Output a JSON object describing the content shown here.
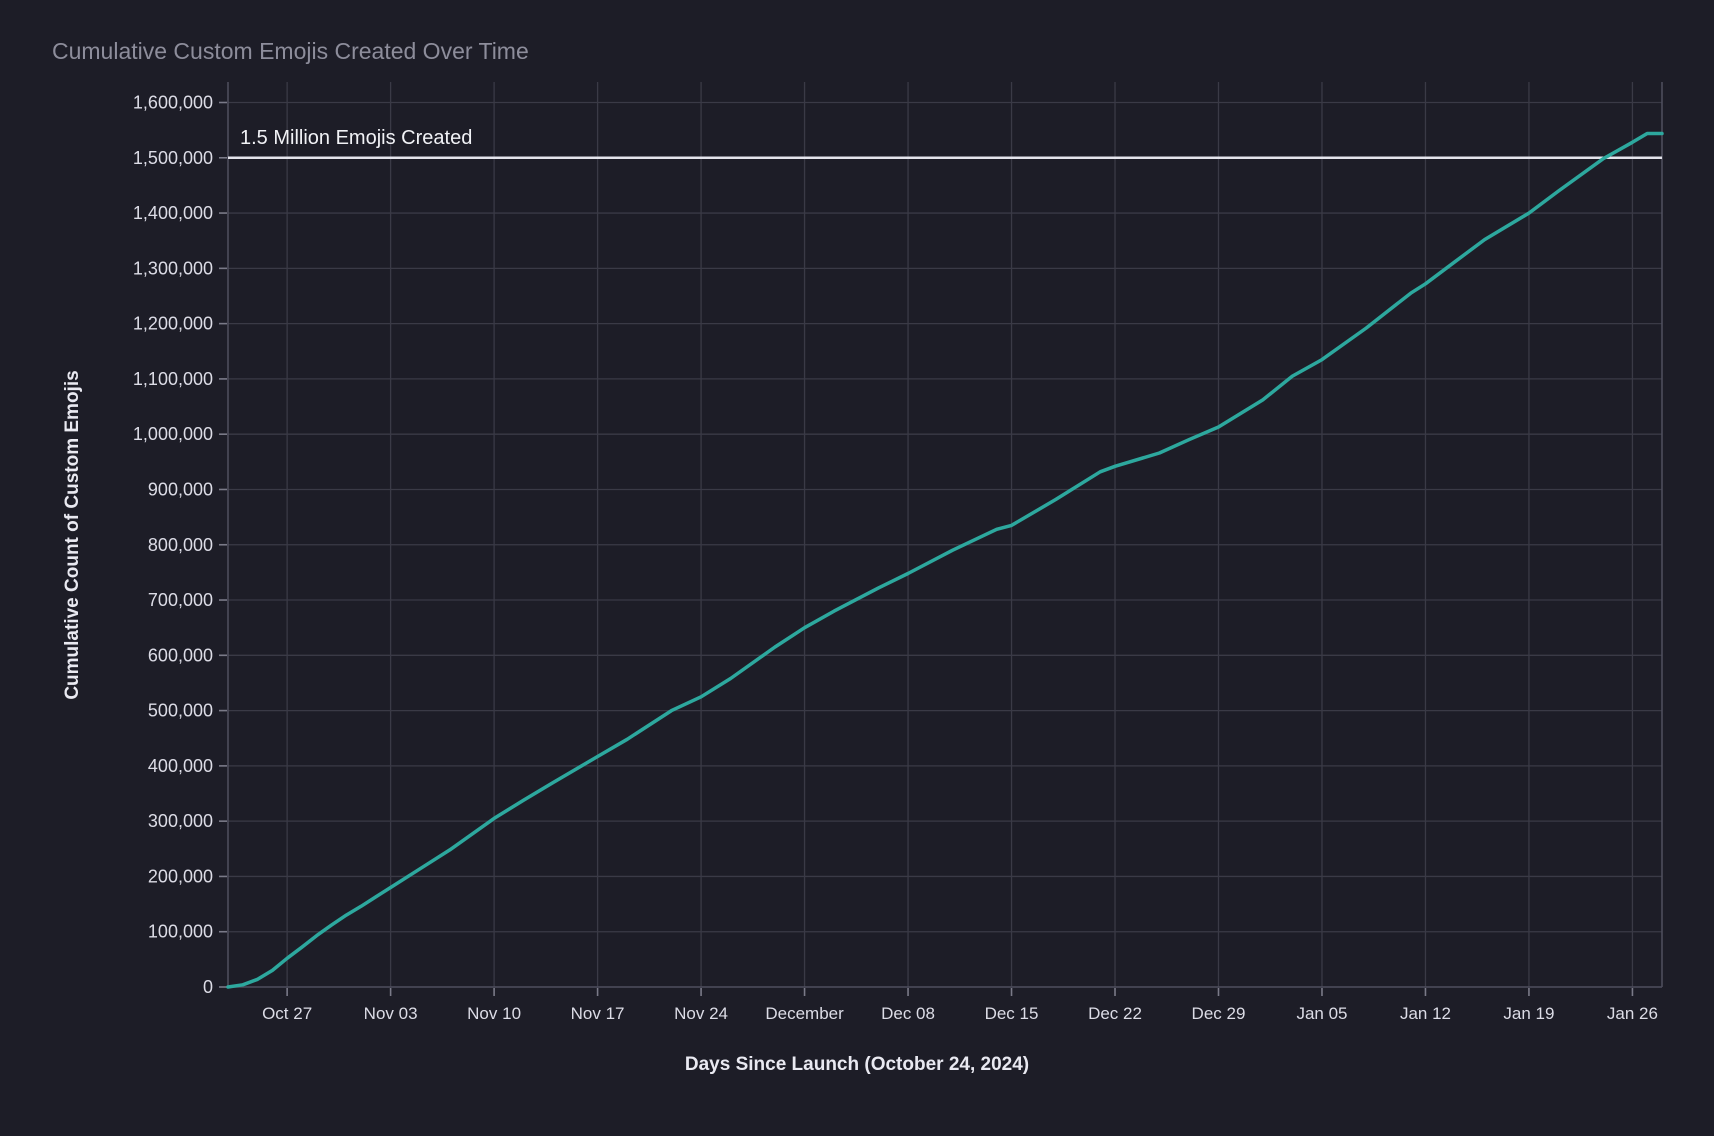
{
  "figure": {
    "title": "Cumulative Custom Emojis Created Over Time"
  },
  "theme": {
    "background": "#1d1d27",
    "grid_color": "#3a3a46",
    "spine_color": "#4d4d5c",
    "tick_mark_color": "#7a7a88",
    "line_color": "#2da89e",
    "reference_line_color": "#e4e4ec",
    "title_color": "#8d8d9b",
    "tick_label_color": "#dcdce6",
    "axis_label_color": "#e9e9f1",
    "annotation_color": "#f1f2f6"
  },
  "chart_data": {
    "type": "line",
    "title": "Cumulative Custom Emojis Created Over Time",
    "xlabel": "Days Since Launch (October 24, 2024)",
    "ylabel": "Cumulative Count of Custom Emojis",
    "legend": null,
    "grid": true,
    "x_domain_days_since_launch": [
      -1,
      96
    ],
    "ylim": [
      0,
      1600000
    ],
    "x_ticks": [
      {
        "label": "Oct 27",
        "day": 3
      },
      {
        "label": "Nov 03",
        "day": 10
      },
      {
        "label": "Nov 10",
        "day": 17
      },
      {
        "label": "Nov 17",
        "day": 24
      },
      {
        "label": "Nov 24",
        "day": 31
      },
      {
        "label": "December",
        "day": 38
      },
      {
        "label": "Dec 08",
        "day": 45
      },
      {
        "label": "Dec 15",
        "day": 52
      },
      {
        "label": "Dec 22",
        "day": 59
      },
      {
        "label": "Dec 29",
        "day": 66
      },
      {
        "label": "Jan 05",
        "day": 73
      },
      {
        "label": "Jan 12",
        "day": 80
      },
      {
        "label": "Jan 19",
        "day": 87
      },
      {
        "label": "Jan 26",
        "day": 94
      }
    ],
    "y_ticks": [
      {
        "value": 0,
        "label": "0"
      },
      {
        "value": 100000,
        "label": "100,000"
      },
      {
        "value": 200000,
        "label": "200,000"
      },
      {
        "value": 300000,
        "label": "300,000"
      },
      {
        "value": 400000,
        "label": "400,000"
      },
      {
        "value": 500000,
        "label": "500,000"
      },
      {
        "value": 600000,
        "label": "600,000"
      },
      {
        "value": 700000,
        "label": "700,000"
      },
      {
        "value": 800000,
        "label": "800,000"
      },
      {
        "value": 900000,
        "label": "900,000"
      },
      {
        "value": 1000000,
        "label": "1,000,000"
      },
      {
        "value": 1100000,
        "label": "1,100,000"
      },
      {
        "value": 1200000,
        "label": "1,200,000"
      },
      {
        "value": 1300000,
        "label": "1,300,000"
      },
      {
        "value": 1400000,
        "label": "1,400,000"
      },
      {
        "value": 1500000,
        "label": "1,500,000"
      },
      {
        "value": 1600000,
        "label": "1,600,000"
      }
    ],
    "reference_line": {
      "value": 1500000,
      "label": "1.5 Million Emojis Created"
    },
    "series": [
      {
        "name": "Cumulative Custom Emojis",
        "color": "#2da89e",
        "points": [
          {
            "date": "Oct 23",
            "day": -1,
            "value": 0
          },
          {
            "date": "Oct 24",
            "day": 0,
            "value": 4000
          },
          {
            "date": "Oct 25",
            "day": 1,
            "value": 14000
          },
          {
            "date": "Oct 26",
            "day": 2,
            "value": 30000
          },
          {
            "date": "Oct 27",
            "day": 3,
            "value": 52000
          },
          {
            "date": "Oct 28",
            "day": 4,
            "value": 72000
          },
          {
            "date": "Oct 29",
            "day": 5,
            "value": 93000
          },
          {
            "date": "Oct 30",
            "day": 6,
            "value": 112000
          },
          {
            "date": "Oct 31",
            "day": 7,
            "value": 130000
          },
          {
            "date": "Nov 01",
            "day": 8,
            "value": 146000
          },
          {
            "date": "Nov 02",
            "day": 9,
            "value": 163000
          },
          {
            "date": "Nov 03",
            "day": 10,
            "value": 180000
          },
          {
            "date": "Nov 05",
            "day": 12,
            "value": 214000
          },
          {
            "date": "Nov 07",
            "day": 14,
            "value": 248000
          },
          {
            "date": "Nov 10",
            "day": 17,
            "value": 305000
          },
          {
            "date": "Nov 12",
            "day": 19,
            "value": 338000
          },
          {
            "date": "Nov 14",
            "day": 21,
            "value": 370000
          },
          {
            "date": "Nov 17",
            "day": 24,
            "value": 417000
          },
          {
            "date": "Nov 19",
            "day": 26,
            "value": 448000
          },
          {
            "date": "Nov 22",
            "day": 29,
            "value": 500000
          },
          {
            "date": "Nov 24",
            "day": 31,
            "value": 525000
          },
          {
            "date": "Nov 26",
            "day": 33,
            "value": 558000
          },
          {
            "date": "Nov 29",
            "day": 36,
            "value": 615000
          },
          {
            "date": "Dec 01",
            "day": 38,
            "value": 650000
          },
          {
            "date": "Dec 03",
            "day": 40,
            "value": 680000
          },
          {
            "date": "Dec 06",
            "day": 43,
            "value": 722000
          },
          {
            "date": "Dec 08",
            "day": 45,
            "value": 748000
          },
          {
            "date": "Dec 11",
            "day": 48,
            "value": 790000
          },
          {
            "date": "Dec 14",
            "day": 51,
            "value": 828000
          },
          {
            "date": "Dec 15",
            "day": 52,
            "value": 835000
          },
          {
            "date": "Dec 18",
            "day": 55,
            "value": 882000
          },
          {
            "date": "Dec 21",
            "day": 58,
            "value": 932000
          },
          {
            "date": "Dec 22",
            "day": 59,
            "value": 942000
          },
          {
            "date": "Dec 25",
            "day": 62,
            "value": 966000
          },
          {
            "date": "Dec 27",
            "day": 64,
            "value": 990000
          },
          {
            "date": "Dec 29",
            "day": 66,
            "value": 1013000
          },
          {
            "date": "Jan 01",
            "day": 69,
            "value": 1062000
          },
          {
            "date": "Jan 03",
            "day": 71,
            "value": 1105000
          },
          {
            "date": "Jan 05",
            "day": 73,
            "value": 1135000
          },
          {
            "date": "Jan 08",
            "day": 76,
            "value": 1192000
          },
          {
            "date": "Jan 11",
            "day": 79,
            "value": 1255000
          },
          {
            "date": "Jan 12",
            "day": 80,
            "value": 1272000
          },
          {
            "date": "Jan 14",
            "day": 82,
            "value": 1312000
          },
          {
            "date": "Jan 16",
            "day": 84,
            "value": 1352000
          },
          {
            "date": "Jan 19",
            "day": 87,
            "value": 1400000
          },
          {
            "date": "Jan 21",
            "day": 89,
            "value": 1440000
          },
          {
            "date": "Jan 24",
            "day": 92,
            "value": 1498000
          },
          {
            "date": "Jan 26",
            "day": 94,
            "value": 1528000
          },
          {
            "date": "Jan 27",
            "day": 95,
            "value": 1544000
          },
          {
            "date": "Jan 28",
            "day": 96,
            "value": 1544000
          }
        ]
      }
    ]
  }
}
